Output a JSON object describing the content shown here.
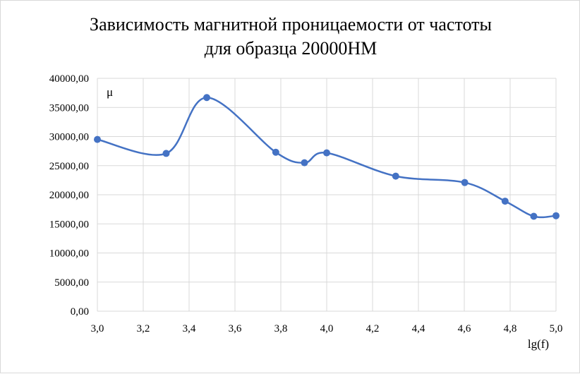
{
  "chart_data": {
    "type": "line",
    "title": [
      "Зависимость магнитной проницаемости от частоты",
      "для образца 20000НМ"
    ],
    "xlabel": "lg(f)",
    "ylabel": "μ",
    "xlim": [
      3.0,
      5.0
    ],
    "ylim": [
      0,
      40000
    ],
    "x_ticks": [
      "3,0",
      "3,2",
      "3,4",
      "3,6",
      "3,8",
      "4,0",
      "4,2",
      "4,4",
      "4,6",
      "4,8",
      "5,0"
    ],
    "y_ticks": [
      "0,00",
      "5000,00",
      "10000,00",
      "15000,00",
      "20000,00",
      "25000,00",
      "30000,00",
      "35000,00",
      "40000,00"
    ],
    "grid": true,
    "smooth": true,
    "series": [
      {
        "x": [
          3.0,
          3.3,
          3.477,
          3.778,
          3.903,
          4.0,
          4.301,
          4.602,
          4.778,
          4.903,
          5.0
        ],
        "y": [
          29500,
          27100,
          36700,
          27300,
          25500,
          27200,
          23200,
          22100,
          18900,
          16300,
          16400
        ],
        "color": "#4472C4"
      }
    ]
  }
}
